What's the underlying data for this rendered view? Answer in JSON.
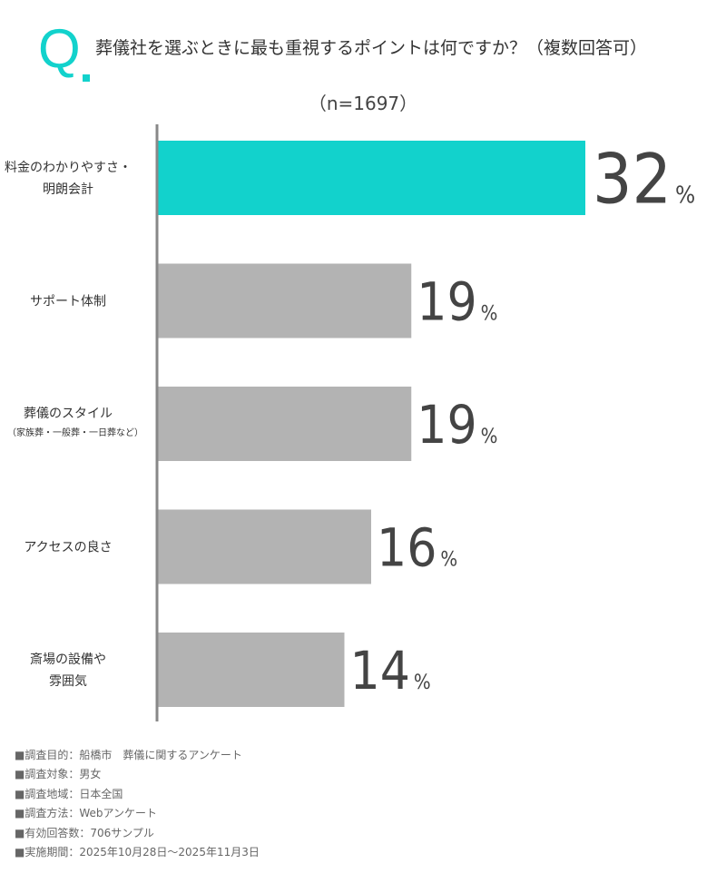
{
  "question": {
    "mark": "Q",
    "title": "葬儀社を選ぶときに最も重視するポイントは何ですか？（複数回答可）"
  },
  "sample_size": "（n=1697）",
  "colors": {
    "accent": "#12d2cc",
    "bar_default": "#b3b3b3",
    "axis": "#888888"
  },
  "chart_data": {
    "type": "bar",
    "orientation": "horizontal",
    "title": "",
    "unit": "%",
    "xlim": [
      0,
      40
    ],
    "grid": false,
    "categories": [
      {
        "label": "料金のわかりやすさ・\n明朗会計",
        "sub": ""
      },
      {
        "label": "サポート体制",
        "sub": ""
      },
      {
        "label": "葬儀のスタイル",
        "sub": "（家族葬・一般葬・一日葬など）"
      },
      {
        "label": "アクセスの良さ",
        "sub": ""
      },
      {
        "label": "斎場の設備や\n雰囲気",
        "sub": ""
      }
    ],
    "values": [
      32,
      19,
      19,
      16,
      14
    ],
    "highlight_index": 0
  },
  "footer": [
    "■調査目的：船橋市　葬儀に関するアンケート",
    "■調査対象：男女",
    "■調査地域：日本全国",
    "■調査方法：Webアンケート",
    "■有効回答数：706サンプル",
    "■実施期間：2025年10月28日〜2025年11月3日"
  ]
}
